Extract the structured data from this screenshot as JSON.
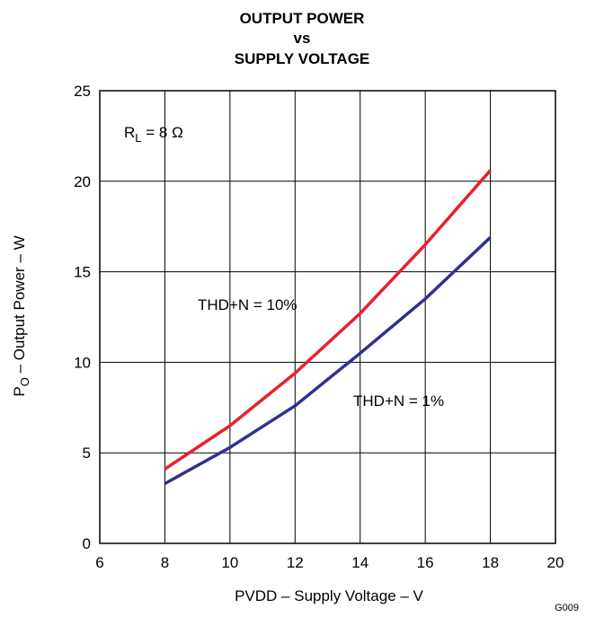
{
  "chart_data": {
    "type": "line",
    "title_lines": [
      "OUTPUT POWER",
      "vs",
      "SUPPLY VOLTAGE"
    ],
    "xlabel": "PVDD – Supply Voltage – V",
    "ylabel": {
      "prefix": "P",
      "sub": "O",
      "suffix": " – Output Power – W"
    },
    "xlim": [
      6,
      20
    ],
    "ylim": [
      0,
      25
    ],
    "x_ticks": [
      6,
      8,
      10,
      12,
      14,
      16,
      18,
      20
    ],
    "y_ticks": [
      0,
      5,
      10,
      15,
      20,
      25
    ],
    "grid": true,
    "series": [
      {
        "name": "THD+N = 10%",
        "color": "#e8202a",
        "x": [
          8,
          10,
          12,
          14,
          16,
          18
        ],
        "y": [
          4.1,
          6.5,
          9.4,
          12.7,
          16.5,
          20.6
        ]
      },
      {
        "name": "THD+N = 1%",
        "color": "#2e3192",
        "x": [
          8,
          10,
          12,
          14,
          16,
          18
        ],
        "y": [
          3.3,
          5.3,
          7.6,
          10.5,
          13.5,
          16.9
        ]
      }
    ],
    "condition": {
      "prefix": "R",
      "sub": "L",
      "suffix": " = 8 Ω"
    },
    "figure_id": "G009"
  }
}
